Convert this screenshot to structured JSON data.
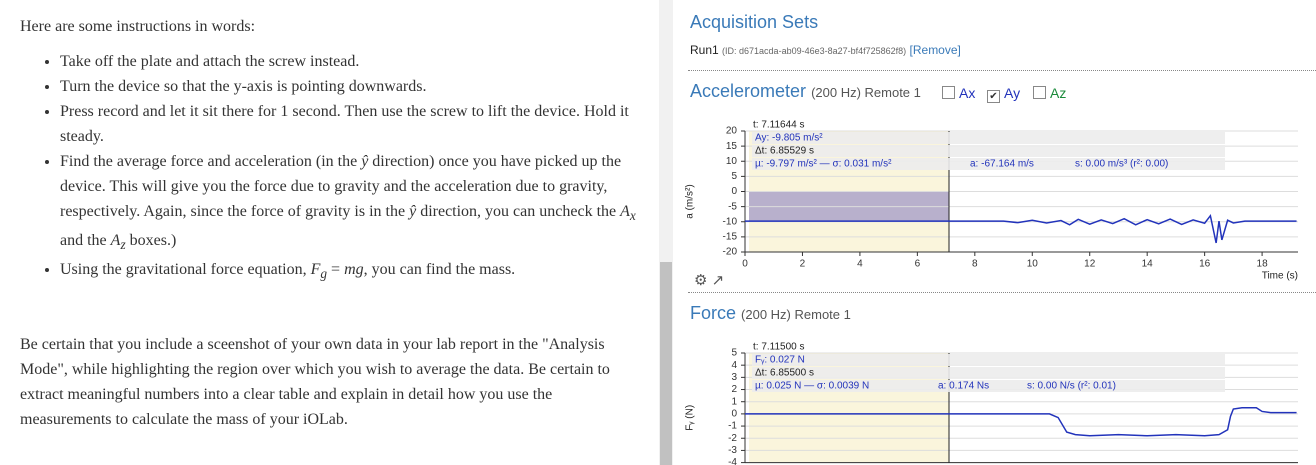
{
  "instructions": {
    "intro": "Here are some instructions in words:",
    "bullets": [
      "Take off the plate and attach the screw instead.",
      "Turn the device so that the y-axis is pointing downwards.",
      "Press record and let it sit there for 1 second. Then use the screw to lift the device. Hold it steady.",
      [
        "Find the average force and acceleration (in the ",
        "ŷ",
        " direction) once you have picked up the device. This will give you the force due to gravity and the acceleration due to gravity, respectively. Again, since the force of gravity is in the ",
        "ŷ",
        " direction, you can uncheck the ",
        "A",
        "x",
        " and the ",
        "A",
        "z",
        " boxes.)"
      ],
      [
        "Using the gravitational force equation, ",
        "F",
        "g",
        " = ",
        "mg",
        ", you can find the mass."
      ]
    ],
    "closing": "Be certain that you include a sceenshot of your own data in your lab report in the \"Analysis Mode\", while highlighting the region over which you wish to average the data. Be certain to extract meaningful numbers into a clear table and explain in detail how you use the measurements to calculate the mass of your iOLab."
  },
  "acquisition": {
    "title": "Acquisition Sets",
    "run": "Run1",
    "id": "(ID: d671acda-ab09-46e3-8a27-bf4f725862f8)",
    "remove": "[Remove]"
  },
  "chart_data": [
    {
      "type": "line",
      "title": "Accelerometer",
      "subtitle": "(200 Hz) Remote 1",
      "channels": [
        {
          "label": "Ax",
          "checked": false
        },
        {
          "label": "Ay",
          "checked": true
        },
        {
          "label": "Az",
          "checked": false
        }
      ],
      "ylabel": "a (m/s²)",
      "xlabel": "Time (s)",
      "readout": {
        "cursor": "t: 7.11644 s",
        "value": "Ay: -9.805 m/s²",
        "delta": "Δt: 6.85529 s",
        "stats": "µ: -9.797 m/s² — σ: 0.031 m/s²",
        "area": "a: -67.164 m/s",
        "slope": "s: 0.00 m/s³ (r²: 0.00)"
      },
      "x": [
        0,
        1,
        2,
        3,
        4,
        5,
        6,
        7,
        8,
        9,
        9.5,
        10,
        10.5,
        11,
        11.3,
        11.6,
        12,
        12.4,
        12.8,
        13.2,
        13.6,
        14,
        14.4,
        14.8,
        15.2,
        15.6,
        16,
        16.2,
        16.4,
        16.5,
        16.6,
        16.8,
        17,
        17.4,
        18,
        19.2
      ],
      "series": [
        {
          "color": "#2233bb",
          "values": [
            -9.8,
            -9.8,
            -9.8,
            -9.8,
            -9.8,
            -9.8,
            -9.8,
            -9.8,
            -9.8,
            -9.8,
            -10.3,
            -9.5,
            -10.4,
            -9.6,
            -11,
            -9.2,
            -10.8,
            -9.4,
            -10.6,
            -9,
            -11,
            -9.3,
            -10.7,
            -9.1,
            -10.9,
            -9.4,
            -10.5,
            -8,
            -17,
            -9.8,
            -16,
            -9.5,
            -10.4,
            -9.8,
            -9.8,
            -9.8
          ]
        }
      ],
      "xlim": [
        0,
        19.25
      ],
      "ylim": [
        -20,
        20
      ],
      "xticks": [
        0,
        2,
        4,
        6,
        8,
        10,
        12,
        14,
        16,
        18
      ],
      "yticks": [
        20,
        15,
        10,
        5,
        0,
        -5,
        -10,
        -15,
        -20
      ],
      "grid": true
    },
    {
      "type": "line",
      "title": "Force",
      "subtitle": "(200 Hz) Remote 1",
      "ylabel": "Fᵧ (N)",
      "readout": {
        "cursor": "t: 7.11500 s",
        "value": "Fᵧ: 0.027 N",
        "delta": "Δt: 6.85500 s",
        "stats": "µ: 0.025 N — σ: 0.0039 N",
        "area": "a: 0.174 Ns",
        "slope": "s: 0.00 N/s (r²: 0.01)"
      },
      "x": [
        0,
        2,
        4,
        6,
        8,
        10,
        10.6,
        10.9,
        11.2,
        11.5,
        12,
        13,
        14,
        15,
        16,
        16.5,
        16.8,
        16.9,
        17,
        17.3,
        17.8,
        18,
        18.3,
        19.2
      ],
      "series": [
        {
          "color": "#2233bb",
          "values": [
            0,
            0,
            0,
            0,
            0,
            0,
            0,
            -0.3,
            -1.5,
            -1.7,
            -1.8,
            -1.7,
            -1.8,
            -1.7,
            -1.8,
            -1.7,
            -1.3,
            -0.2,
            0.4,
            0.5,
            0.5,
            0.2,
            0.1,
            0.1
          ]
        }
      ],
      "xlim": [
        0,
        19.25
      ],
      "ylim": [
        -4,
        5
      ],
      "yticks": [
        5,
        4,
        3,
        2,
        1,
        0,
        -1,
        -2,
        -3,
        -4
      ],
      "grid": true
    }
  ]
}
